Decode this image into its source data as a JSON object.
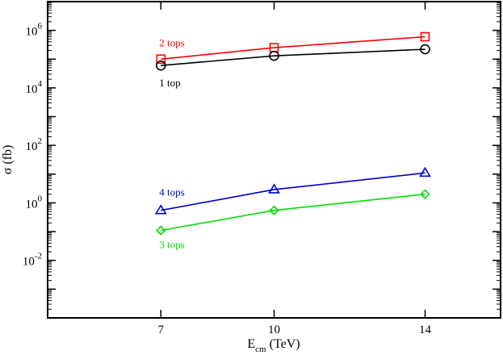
{
  "chart_data": {
    "type": "line",
    "title": "",
    "xlabel": "E",
    "xlabel_sub": "cm",
    "xlabel_unit": " (TeV)",
    "ylabel": "σ (fb)",
    "yscale": "log",
    "xlim": [
      4,
      16
    ],
    "ylim_log10": [
      -4,
      7
    ],
    "x_ticks": [
      7,
      10,
      14
    ],
    "x_tick_labels": [
      "7",
      "10",
      "14"
    ],
    "y_ticks_log10": [
      -2,
      0,
      2,
      4,
      6
    ],
    "y_tick_labels": [
      {
        "base": "10",
        "exp": "-2"
      },
      {
        "base": "10",
        "exp": "0"
      },
      {
        "base": "10",
        "exp": "2"
      },
      {
        "base": "10",
        "exp": "4"
      },
      {
        "base": "10",
        "exp": "6"
      }
    ],
    "grid": false,
    "x": [
      7,
      10,
      14
    ],
    "series": [
      {
        "name": "2 tops",
        "color": "#ff0000",
        "marker": "square",
        "values": [
          100000,
          250000,
          600000
        ]
      },
      {
        "name": "1 top",
        "color": "#000000",
        "marker": "circle",
        "values": [
          60000,
          130000,
          220000
        ]
      },
      {
        "name": "4 tops",
        "color": "#0000cc",
        "marker": "triangle",
        "values": [
          0.55,
          2.9,
          11
        ]
      },
      {
        "name": "3 tops",
        "color": "#00dd00",
        "marker": "diamond",
        "values": [
          0.11,
          0.55,
          2.0
        ]
      }
    ]
  }
}
